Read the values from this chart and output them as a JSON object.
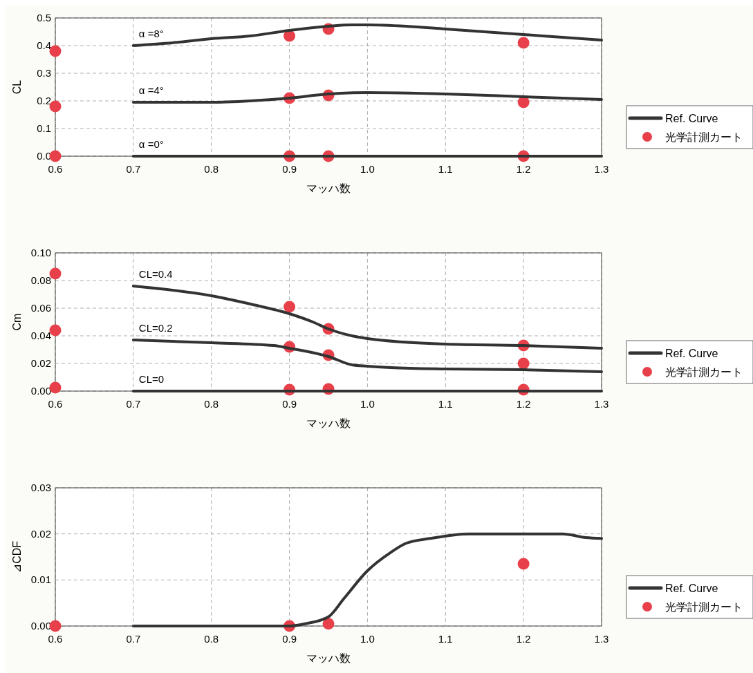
{
  "chart_data": [
    {
      "type": "line",
      "ylabel": "CL",
      "xlabel": "マッハ数",
      "xlim": [
        0.6,
        1.3
      ],
      "ylim": [
        0,
        0.5
      ],
      "xticks": [
        {
          "value": 0.6,
          "label": "0.6"
        },
        {
          "value": 0.7,
          "label": "0.7"
        },
        {
          "value": 0.8,
          "label": "0.8"
        },
        {
          "value": 0.9,
          "label": "0.9"
        },
        {
          "value": 1.0,
          "label": "1.0"
        },
        {
          "value": 1.1,
          "label": "1.1"
        },
        {
          "value": 1.2,
          "label": "1.2"
        },
        {
          "value": 1.3,
          "label": "1.3"
        }
      ],
      "yticks": [
        {
          "value": 0,
          "label": "0.0"
        },
        {
          "value": 0.1,
          "label": "0.1"
        },
        {
          "value": 0.2,
          "label": "0.2"
        },
        {
          "value": 0.3,
          "label": "0.3"
        },
        {
          "value": 0.4,
          "label": "0.4"
        },
        {
          "value": 0.5,
          "label": "0.5"
        }
      ],
      "grid": true,
      "legend": "right",
      "line_style": "solid",
      "series": [
        {
          "name": "Ref. Curve",
          "color": "#333333",
          "x": [
            0.7,
            0.75,
            0.8,
            0.85,
            0.9,
            0.95,
            0.98,
            1.0,
            1.05,
            1.1,
            1.15,
            1.2,
            1.25,
            1.3
          ],
          "values": [
            0.4,
            0.41,
            0.425,
            0.435,
            0.455,
            0.47,
            0.475,
            0.475,
            0.47,
            0.46,
            0.45,
            0.44,
            0.43,
            0.42
          ]
        },
        {
          "color": "#333333",
          "x": [
            0.7,
            0.8,
            0.85,
            0.9,
            0.95,
            1.0,
            1.1,
            1.2,
            1.3
          ],
          "values": [
            0.195,
            0.195,
            0.2,
            0.21,
            0.225,
            0.23,
            0.225,
            0.215,
            0.205
          ]
        },
        {
          "type": "line",
          "color": "#333333",
          "x": [
            0.7,
            1.3
          ],
          "values": [
            0,
            0
          ]
        },
        {
          "name": "光学計測カート",
          "type": "scatter",
          "marker": "circle",
          "color": "#e8404a",
          "x": [
            0.6,
            0.6,
            0.6,
            0.9,
            0.9,
            0.9,
            0.95,
            0.95,
            0.95,
            1.2,
            1.2,
            1.2
          ],
          "values": [
            0.38,
            0.18,
            0,
            0.435,
            0.21,
            0,
            0.46,
            0.22,
            0,
            0.41,
            0.195,
            0
          ]
        }
      ],
      "annotations": [
        "α =8°",
        "α =4°",
        "α =0°"
      ]
    },
    {
      "type": "line",
      "ylabel": "Cm",
      "xlabel": "マッハ数",
      "xlim": [
        0.6,
        1.3
      ],
      "ylim": [
        0,
        0.1
      ],
      "xticks": [
        {
          "value": 0.6,
          "label": "0.6"
        },
        {
          "value": 0.7,
          "label": "0.7"
        },
        {
          "value": 0.8,
          "label": "0.8"
        },
        {
          "value": 0.9,
          "label": "0.9"
        },
        {
          "value": 1.0,
          "label": "1.0"
        },
        {
          "value": 1.1,
          "label": "1.1"
        },
        {
          "value": 1.2,
          "label": "1.2"
        },
        {
          "value": 1.3,
          "label": "1.3"
        }
      ],
      "yticks": [
        {
          "value": 0,
          "label": "0.00"
        },
        {
          "value": 0.02,
          "label": "0.02"
        },
        {
          "value": 0.04,
          "label": "0.04"
        },
        {
          "value": 0.06,
          "label": "0.06"
        },
        {
          "value": 0.08,
          "label": "0.08"
        },
        {
          "value": 0.1,
          "label": "0.10"
        }
      ],
      "grid": true,
      "legend": "right",
      "line_style": "solid",
      "series": [
        {
          "name": "Ref. Curve",
          "color": "#333333",
          "x": [
            0.7,
            0.8,
            0.85,
            0.9,
            0.93,
            0.95,
            0.98,
            1.0,
            1.1,
            1.2,
            1.3
          ],
          "values": [
            0.076,
            0.069,
            0.063,
            0.056,
            0.05,
            0.045,
            0.04,
            0.038,
            0.034,
            0.033,
            0.031
          ]
        },
        {
          "color": "#333333",
          "x": [
            0.7,
            0.8,
            0.88,
            0.9,
            0.95,
            0.98,
            1.0,
            1.03,
            1.1,
            1.2,
            1.3
          ],
          "values": [
            0.037,
            0.035,
            0.033,
            0.031,
            0.025,
            0.019,
            0.018,
            0.017,
            0.016,
            0.0155,
            0.014
          ]
        },
        {
          "type": "line",
          "color": "#333333",
          "x": [
            0.7,
            1.3
          ],
          "values": [
            0,
            0
          ]
        },
        {
          "name": "光学計測カート",
          "type": "scatter",
          "marker": "circle",
          "color": "#e8404a",
          "x": [
            0.6,
            0.6,
            0.6,
            0.9,
            0.9,
            0.9,
            0.95,
            0.95,
            0.95,
            1.2,
            1.2,
            1.2
          ],
          "values": [
            0.085,
            0.044,
            0.0025,
            0.061,
            0.032,
            0.001,
            0.045,
            0.026,
            0.0015,
            0.033,
            0.02,
            0.001
          ]
        }
      ],
      "annotations": [
        "CL=0.4",
        "CL=0.2",
        "CL=0"
      ]
    },
    {
      "type": "line",
      "ylabel": "⊿CDF",
      "xlabel": "マッハ数",
      "xlim": [
        0.6,
        1.3
      ],
      "ylim": [
        0,
        0.03
      ],
      "xticks": [
        {
          "value": 0.6,
          "label": "0.6"
        },
        {
          "value": 0.7,
          "label": "0.7"
        },
        {
          "value": 0.8,
          "label": "0.8"
        },
        {
          "value": 0.9,
          "label": "0.9"
        },
        {
          "value": 1.0,
          "label": "1.0"
        },
        {
          "value": 1.1,
          "label": "1.1"
        },
        {
          "value": 1.2,
          "label": "1.2"
        },
        {
          "value": 1.3,
          "label": "1.3"
        }
      ],
      "yticks": [
        {
          "value": 0,
          "label": "0.00"
        },
        {
          "value": 0.01,
          "label": "0.01"
        },
        {
          "value": 0.02,
          "label": "0.02"
        },
        {
          "value": 0.03,
          "label": "0.03"
        }
      ],
      "grid": true,
      "legend": "right",
      "line_style": "solid",
      "series": [
        {
          "name": "Ref. Curve",
          "color": "#333333",
          "x": [
            0.7,
            0.9,
            0.92,
            0.95,
            0.97,
            1.0,
            1.03,
            1.05,
            1.08,
            1.13,
            1.25,
            1.28,
            1.3
          ],
          "values": [
            0,
            0,
            0.0005,
            0.002,
            0.006,
            0.012,
            0.016,
            0.018,
            0.019,
            0.02,
            0.02,
            0.0192,
            0.019
          ]
        },
        {
          "name": "光学計測カート",
          "type": "scatter",
          "marker": "circle",
          "color": "#e8404a",
          "x": [
            0.6,
            0.9,
            0.95,
            1.2
          ],
          "values": [
            0,
            0,
            0.0005,
            0.0135
          ]
        }
      ]
    }
  ]
}
